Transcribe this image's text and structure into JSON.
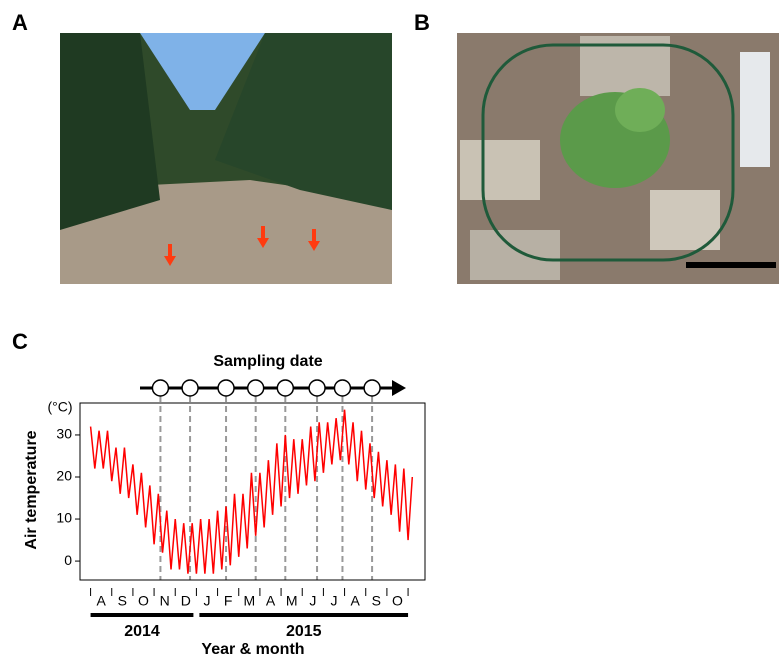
{
  "panels": {
    "a": "A",
    "b": "B",
    "c": "C"
  },
  "chart_data": {
    "type": "line",
    "title": "Sampling date",
    "y_label": "Air temperature",
    "y_unit": "(°C)",
    "x_label": "Year & month",
    "years": [
      "2014",
      "2015"
    ],
    "xlim": [
      -0.5,
      15.8
    ],
    "ylim": [
      -4.5,
      37.6
    ],
    "yticks": [
      0,
      10,
      20,
      30
    ],
    "xticks": [
      {
        "value": 0.5,
        "label": "A"
      },
      {
        "value": 1.5,
        "label": "S"
      },
      {
        "value": 2.5,
        "label": "O"
      },
      {
        "value": 3.5,
        "label": "N"
      },
      {
        "value": 4.5,
        "label": "D"
      },
      {
        "value": 5.5,
        "label": "J"
      },
      {
        "value": 6.5,
        "label": "F"
      },
      {
        "value": 7.5,
        "label": "M"
      },
      {
        "value": 8.5,
        "label": "A"
      },
      {
        "value": 9.5,
        "label": "M"
      },
      {
        "value": 10.5,
        "label": "J"
      },
      {
        "value": 11.5,
        "label": "J"
      },
      {
        "value": 12.5,
        "label": "A"
      },
      {
        "value": 13.5,
        "label": "S"
      },
      {
        "value": 14.5,
        "label": "O"
      }
    ],
    "sampling_dates": [
      3.3,
      4.7,
      6.4,
      7.8,
      9.2,
      10.7,
      11.9,
      13.3
    ],
    "x": [
      0,
      0.2,
      0.4,
      0.6,
      0.8,
      1.0,
      1.2,
      1.4,
      1.6,
      1.8,
      2.0,
      2.2,
      2.4,
      2.6,
      2.8,
      3.0,
      3.2,
      3.4,
      3.6,
      3.8,
      4.0,
      4.2,
      4.4,
      4.6,
      4.8,
      5.0,
      5.2,
      5.4,
      5.6,
      5.8,
      6.0,
      6.2,
      6.4,
      6.6,
      6.8,
      7.0,
      7.2,
      7.4,
      7.6,
      7.8,
      8.0,
      8.2,
      8.4,
      8.6,
      8.8,
      9.0,
      9.2,
      9.4,
      9.6,
      9.8,
      10.0,
      10.2,
      10.4,
      10.6,
      10.8,
      11.0,
      11.2,
      11.4,
      11.6,
      11.8,
      12.0,
      12.2,
      12.4,
      12.6,
      12.8,
      13.0,
      13.2,
      13.4,
      13.6,
      13.8,
      14.0,
      14.2,
      14.4,
      14.6,
      14.8,
      15.0,
      15.2
    ],
    "series": [
      {
        "color": "#ff0000",
        "values": [
          32,
          22,
          31,
          22,
          31,
          19,
          27,
          16,
          27,
          15,
          23,
          11,
          21,
          8,
          18,
          4,
          16,
          2,
          12,
          -2,
          10,
          -2,
          9,
          -3,
          9,
          -3,
          10,
          -3,
          10,
          -3,
          12,
          -2,
          13,
          -1,
          16,
          1,
          16,
          3,
          21,
          6,
          21,
          8,
          24,
          11,
          28,
          13,
          30,
          15,
          29,
          16,
          29,
          18,
          32,
          19,
          33,
          21,
          33,
          23,
          34,
          24,
          36,
          23,
          33,
          19,
          31,
          17,
          28,
          15,
          26,
          13,
          24,
          11,
          23,
          7,
          22,
          5,
          20
        ]
      }
    ]
  }
}
